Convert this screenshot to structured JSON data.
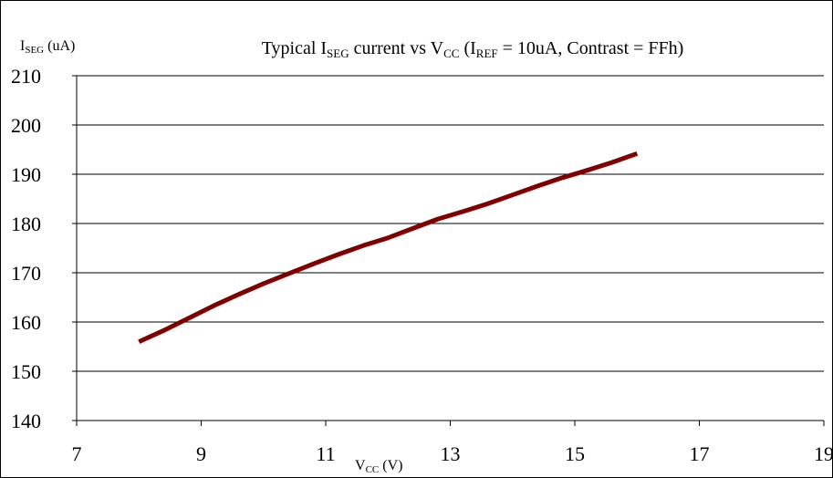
{
  "chart_data": {
    "type": "line",
    "title": {
      "prefix": "Typical I",
      "prefix_sub": "SEG",
      "middle": " current vs V",
      "middle_sub": "CC",
      "paren_open": " (I",
      "paren_sub": "REF",
      "suffix": " = 10uA, Contrast = FFh)"
    },
    "ylabel": {
      "main": "I",
      "sub": "SEG",
      "unit": " (uA)"
    },
    "xlabel": {
      "main": "V",
      "sub": "CC",
      "unit": " (V)"
    },
    "xlim": [
      7,
      19
    ],
    "ylim": [
      140,
      210
    ],
    "xticks": [
      7,
      9,
      11,
      13,
      15,
      17,
      19
    ],
    "yticks": [
      140,
      150,
      160,
      170,
      180,
      190,
      200,
      210
    ],
    "grid": "horizontal",
    "legend": "none",
    "series": [
      {
        "color": "#800000",
        "x": [
          8.0,
          8.4,
          8.8,
          9.2,
          9.6,
          10.0,
          10.4,
          10.8,
          11.2,
          11.6,
          12.0,
          12.4,
          12.8,
          13.2,
          13.6,
          14.0,
          14.4,
          14.8,
          15.2,
          15.6,
          16.0
        ],
        "y": [
          156.0,
          158.3,
          160.8,
          163.3,
          165.6,
          167.8,
          169.8,
          171.8,
          173.7,
          175.5,
          177.1,
          179.0,
          180.9,
          182.4,
          184.0,
          185.8,
          187.6,
          189.3,
          190.8,
          192.4,
          194.2
        ]
      }
    ]
  }
}
